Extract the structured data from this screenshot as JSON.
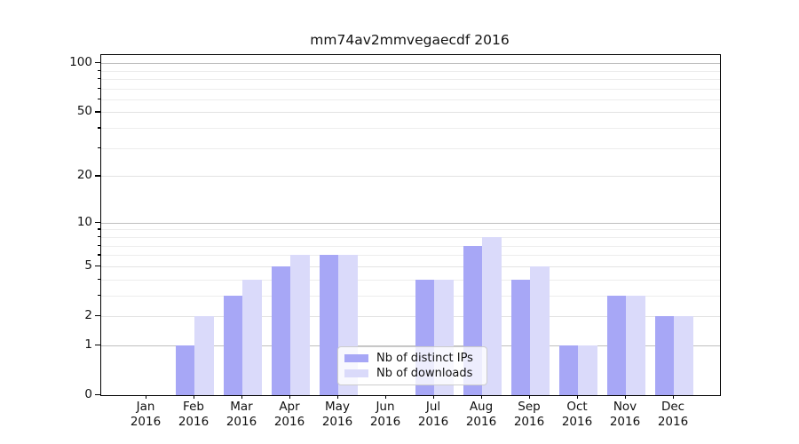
{
  "chart_data": {
    "type": "bar",
    "title": "mm74av2mmvegaecdf 2016",
    "categories": [
      "Jan",
      "Feb",
      "Mar",
      "Apr",
      "May",
      "Jun",
      "Jul",
      "Aug",
      "Sep",
      "Oct",
      "Nov",
      "Dec"
    ],
    "year": "2016",
    "series": [
      {
        "name": "Nb of distinct IPs",
        "color": "#a7a7f6",
        "values": [
          0,
          1,
          3,
          5,
          6,
          0,
          4,
          7,
          4,
          1,
          3,
          2
        ]
      },
      {
        "name": "Nb of downloads",
        "color": "#dadafa",
        "values": [
          0,
          2,
          4,
          6,
          6,
          0,
          4,
          8,
          5,
          1,
          3,
          2
        ]
      }
    ],
    "xlabel": "",
    "ylabel": "",
    "yscale": "log1p",
    "ylim": [
      0,
      112
    ],
    "yticks_major": [
      0,
      1,
      2,
      5,
      10,
      20,
      50,
      100
    ],
    "yticks_decade": [
      1,
      10,
      100
    ],
    "yticks_minor": [
      3,
      4,
      6,
      7,
      8,
      9,
      30,
      40,
      60,
      70,
      80,
      90
    ],
    "grid": true,
    "legend_position": "lower-center",
    "axis_color": "#000000",
    "background_color": "#ffffff"
  }
}
